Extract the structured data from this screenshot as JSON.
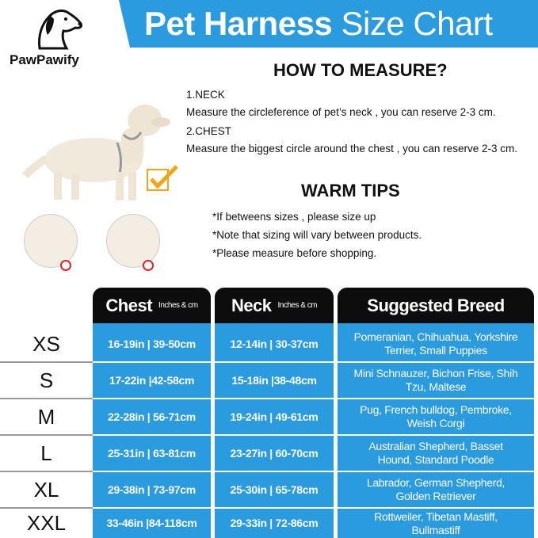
{
  "brand": {
    "name": "PawPawify"
  },
  "header": {
    "title_bold": "Pet Harness",
    "title_light": "Size Chart",
    "color": "#2b9be0"
  },
  "measure": {
    "heading": "HOW TO MEASURE?",
    "neck_label": "1.NECK",
    "neck_text": "Measure the circleference of pet’s neck , you can reserve 2-3 cm.",
    "chest_label": "2.CHEST",
    "chest_text": "Measure the biggest circle around the chest , you can reserve 2-3 cm."
  },
  "tips": {
    "heading": "WARM TIPS",
    "items": [
      "*If betweens sizes , please size up",
      "*Note that sizing will vary between products.",
      "*Please measure before shopping."
    ]
  },
  "table": {
    "columns": [
      {
        "title": "Chest",
        "unit": "Inches & cm"
      },
      {
        "title": "Neck",
        "unit": "Inches & cm"
      },
      {
        "title": "Suggested Breed",
        "unit": ""
      }
    ],
    "rows": [
      {
        "size": "XS",
        "chest": "16-19in | 39-50cm",
        "neck": "12-14in | 30-37cm",
        "breed": "Pomeranian, Chihuahua, Yorkshire Terrier, Small Puppies"
      },
      {
        "size": "S",
        "chest": "17-22in |42-58cm",
        "neck": "15-18in |38-48cm",
        "breed": "Mini Schnauzer, Bichon Frise, Shih Tzu, Maltese"
      },
      {
        "size": "M",
        "chest": "22-28in | 56-71cm",
        "neck": "19-24in | 49-61cm",
        "breed": "Pug, French bulldog, Pembroke, Weish Corgi"
      },
      {
        "size": "L",
        "chest": "25-31in | 63-81cm",
        "neck": "23-27in | 60-70cm",
        "breed": "Australian Shepherd, Basset Hound, Standard Poodle"
      },
      {
        "size": "XL",
        "chest": "29-38in | 73-97cm",
        "neck": "25-30in | 65-78cm",
        "breed": "Labrador, German Shepherd, Golden Retriever"
      },
      {
        "size": "XXL",
        "chest": "33-46in |84-118cm",
        "neck": "29-33in | 72-86cm",
        "breed": "Rottweiler, Tibetan Mastiff, Bullmastiff"
      }
    ]
  }
}
